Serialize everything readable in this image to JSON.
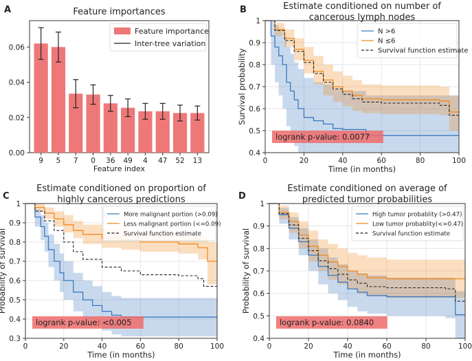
{
  "chart_data": [
    {
      "panel": "A",
      "type": "bar",
      "title": "Feature importances",
      "xlabel": "Feature index",
      "ylabel": "",
      "categories": [
        "9",
        "5",
        "7",
        "0",
        "36",
        "49",
        "4",
        "47",
        "52",
        "13"
      ],
      "values": [
        0.062,
        0.06,
        0.0335,
        0.033,
        0.028,
        0.0255,
        0.0235,
        0.0235,
        0.0225,
        0.0225
      ],
      "errors": [
        0.009,
        0.0085,
        0.008,
        0.0055,
        0.0045,
        0.005,
        0.0045,
        0.0045,
        0.0045,
        0.004
      ],
      "ylim": [
        0,
        0.075
      ],
      "yticks": [
        "0.00",
        "0.02",
        "0.04",
        "0.06"
      ],
      "ytick_values": [
        0,
        0.02,
        0.04,
        0.06
      ],
      "legend": [
        "Feature importance",
        "Inter-tree variation"
      ],
      "legend_position": "top-right",
      "colors": {
        "bar": "#ee7878",
        "error": "#222222"
      }
    },
    {
      "panel": "B",
      "type": "line",
      "title": "Estimate conditioned on number of cancerous lymph nodes",
      "title_lines": [
        "Estimate conditioned on number of",
        "cancerous lymph nodes"
      ],
      "xlabel": "Time (in months)",
      "ylabel": "Survival probability",
      "xlim": [
        0,
        100
      ],
      "ylim": [
        0.4,
        1.0
      ],
      "xticks": [
        0,
        20,
        40,
        60,
        80,
        100
      ],
      "yticks": [
        0.4,
        0.5,
        0.6,
        0.7,
        0.8,
        0.9,
        1.0
      ],
      "annotation": "logrank p-value: 0.0077",
      "legend_position": "top-right",
      "series": [
        {
          "name": "N >6",
          "color": "#3a78c0",
          "dashed": false,
          "x": [
            0,
            3,
            5,
            7,
            9,
            11,
            13,
            15,
            17,
            20,
            25,
            30,
            35,
            40,
            50,
            52,
            100
          ],
          "y": [
            1.0,
            0.93,
            0.88,
            0.84,
            0.8,
            0.72,
            0.68,
            0.64,
            0.6,
            0.56,
            0.545,
            0.53,
            0.51,
            0.505,
            0.505,
            0.478,
            0.478
          ],
          "lower": [
            1.0,
            0.8,
            0.72,
            0.66,
            0.6,
            0.52,
            0.47,
            0.43,
            0.4,
            0.4,
            0.4,
            0.4,
            0.4,
            0.4,
            0.4,
            0.4,
            0.4
          ],
          "upper": [
            1.0,
            1.0,
            0.98,
            0.96,
            0.93,
            0.88,
            0.85,
            0.81,
            0.78,
            0.74,
            0.72,
            0.71,
            0.69,
            0.68,
            0.68,
            0.66,
            0.66
          ]
        },
        {
          "name": "N ≤6",
          "color": "#f08a1e",
          "dashed": false,
          "x": [
            0,
            5,
            10,
            15,
            20,
            25,
            30,
            35,
            40,
            45,
            50,
            60,
            70,
            80,
            90,
            95,
            100
          ],
          "y": [
            1.0,
            0.96,
            0.92,
            0.87,
            0.82,
            0.77,
            0.73,
            0.7,
            0.68,
            0.66,
            0.645,
            0.64,
            0.64,
            0.64,
            0.635,
            0.585,
            0.58
          ],
          "lower": [
            1.0,
            0.93,
            0.88,
            0.82,
            0.76,
            0.71,
            0.66,
            0.63,
            0.61,
            0.59,
            0.58,
            0.575,
            0.575,
            0.575,
            0.57,
            0.5,
            0.49
          ],
          "upper": [
            1.0,
            0.99,
            0.96,
            0.92,
            0.88,
            0.84,
            0.8,
            0.77,
            0.75,
            0.73,
            0.71,
            0.705,
            0.705,
            0.705,
            0.7,
            0.66,
            0.66
          ]
        },
        {
          "name": "Survival function estimate",
          "color": "#222222",
          "dashed": true,
          "x": [
            0,
            5,
            10,
            15,
            20,
            25,
            30,
            35,
            40,
            45,
            50,
            60,
            70,
            80,
            90,
            95,
            100
          ],
          "y": [
            1.0,
            0.955,
            0.91,
            0.86,
            0.81,
            0.76,
            0.72,
            0.69,
            0.665,
            0.645,
            0.63,
            0.625,
            0.625,
            0.625,
            0.615,
            0.57,
            0.57
          ]
        }
      ]
    },
    {
      "panel": "C",
      "type": "line",
      "title": "Estimate conditioned on proportion of highly cancerous predictions",
      "title_lines": [
        "Estimate conditioned on proportion of",
        "highly cancerous predictions"
      ],
      "xlabel": "Time (in months)",
      "ylabel": "Probability of survival",
      "xlim": [
        0,
        100
      ],
      "ylim": [
        0.3,
        1.0
      ],
      "xticks": [
        0,
        20,
        40,
        60,
        80,
        100
      ],
      "yticks": [
        0.3,
        0.4,
        0.5,
        0.6,
        0.7,
        0.8,
        0.9,
        1.0
      ],
      "annotation": "logrank p-value: <0.005",
      "legend_position": "top-right",
      "series": [
        {
          "name": "More malignant portion (>0.09)",
          "color": "#3a78c0",
          "dashed": false,
          "x": [
            0,
            5,
            8,
            10,
            12,
            15,
            18,
            20,
            25,
            30,
            35,
            40,
            45,
            50,
            100
          ],
          "y": [
            1.0,
            0.93,
            0.88,
            0.83,
            0.76,
            0.7,
            0.64,
            0.6,
            0.54,
            0.5,
            0.47,
            0.44,
            0.42,
            0.41,
            0.41
          ],
          "lower": [
            1.0,
            0.88,
            0.81,
            0.75,
            0.67,
            0.6,
            0.54,
            0.5,
            0.44,
            0.4,
            0.37,
            0.34,
            0.32,
            0.31,
            0.31
          ],
          "upper": [
            1.0,
            0.97,
            0.94,
            0.9,
            0.84,
            0.79,
            0.74,
            0.7,
            0.64,
            0.6,
            0.57,
            0.54,
            0.52,
            0.51,
            0.51
          ]
        },
        {
          "name": "Less malignant portion (<=0.09)",
          "color": "#f08a1e",
          "dashed": false,
          "x": [
            0,
            5,
            10,
            15,
            20,
            25,
            30,
            40,
            50,
            60,
            80,
            90,
            95,
            100
          ],
          "y": [
            1.0,
            0.98,
            0.95,
            0.92,
            0.89,
            0.86,
            0.84,
            0.82,
            0.81,
            0.8,
            0.79,
            0.77,
            0.7,
            0.7
          ],
          "lower": [
            1.0,
            0.96,
            0.92,
            0.88,
            0.85,
            0.82,
            0.79,
            0.77,
            0.76,
            0.75,
            0.74,
            0.71,
            0.58,
            0.58
          ],
          "upper": [
            1.0,
            1.0,
            0.98,
            0.96,
            0.94,
            0.91,
            0.89,
            0.87,
            0.86,
            0.85,
            0.84,
            0.83,
            0.8,
            0.8
          ]
        },
        {
          "name": "Survival function estimate",
          "color": "#222222",
          "dashed": true,
          "x": [
            0,
            5,
            10,
            15,
            20,
            25,
            30,
            40,
            50,
            60,
            80,
            90,
            93,
            100
          ],
          "y": [
            1.0,
            0.96,
            0.91,
            0.86,
            0.8,
            0.75,
            0.71,
            0.67,
            0.65,
            0.63,
            0.625,
            0.61,
            0.57,
            0.57
          ]
        }
      ]
    },
    {
      "panel": "D",
      "type": "line",
      "title": "Estimate conditioned on average of predicted tumor probabilities",
      "title_lines": [
        "Estimate conditioned on average of",
        "predicted tumor probabilities"
      ],
      "xlabel": "Time (in months)",
      "ylabel": "Probability of survival",
      "xlim": [
        0,
        100
      ],
      "ylim": [
        0.4,
        1.0
      ],
      "xticks": [
        0,
        20,
        40,
        60,
        80,
        100
      ],
      "yticks": [
        0.4,
        0.5,
        0.6,
        0.7,
        0.8,
        0.9,
        1.0
      ],
      "annotation": "logrank p-value: 0.0840",
      "legend_position": "top-right",
      "series": [
        {
          "name": "High tumor probablity (>0.47)",
          "color": "#3a78c0",
          "dashed": false,
          "x": [
            0,
            5,
            10,
            15,
            20,
            25,
            30,
            35,
            40,
            45,
            50,
            60,
            80,
            90,
            95,
            100
          ],
          "y": [
            1.0,
            0.95,
            0.89,
            0.83,
            0.77,
            0.72,
            0.68,
            0.65,
            0.62,
            0.605,
            0.59,
            0.585,
            0.585,
            0.585,
            0.505,
            0.505
          ],
          "lower": [
            1.0,
            0.91,
            0.84,
            0.77,
            0.7,
            0.64,
            0.6,
            0.57,
            0.54,
            0.52,
            0.51,
            0.5,
            0.5,
            0.49,
            0.4,
            0.4
          ],
          "upper": [
            1.0,
            0.98,
            0.94,
            0.89,
            0.84,
            0.8,
            0.76,
            0.73,
            0.7,
            0.69,
            0.68,
            0.67,
            0.67,
            0.67,
            0.61,
            0.61
          ]
        },
        {
          "name": "Low tumor probablity(<=0.47)",
          "color": "#f08a1e",
          "dashed": false,
          "x": [
            0,
            5,
            10,
            15,
            20,
            25,
            30,
            35,
            40,
            45,
            50,
            60,
            80,
            100
          ],
          "y": [
            1.0,
            0.96,
            0.92,
            0.86,
            0.81,
            0.77,
            0.74,
            0.72,
            0.7,
            0.685,
            0.67,
            0.665,
            0.665,
            0.665
          ],
          "lower": [
            1.0,
            0.93,
            0.87,
            0.8,
            0.74,
            0.7,
            0.66,
            0.64,
            0.62,
            0.6,
            0.59,
            0.58,
            0.58,
            0.58
          ],
          "upper": [
            1.0,
            0.99,
            0.96,
            0.92,
            0.88,
            0.84,
            0.82,
            0.8,
            0.78,
            0.77,
            0.76,
            0.75,
            0.75,
            0.75
          ]
        },
        {
          "name": "Survival function estimate",
          "color": "#222222",
          "dashed": true,
          "x": [
            0,
            5,
            10,
            15,
            20,
            25,
            30,
            35,
            40,
            45,
            50,
            60,
            80,
            90,
            95,
            100
          ],
          "y": [
            1.0,
            0.955,
            0.905,
            0.845,
            0.79,
            0.745,
            0.71,
            0.685,
            0.66,
            0.645,
            0.63,
            0.625,
            0.625,
            0.62,
            0.565,
            0.565
          ]
        }
      ]
    }
  ]
}
